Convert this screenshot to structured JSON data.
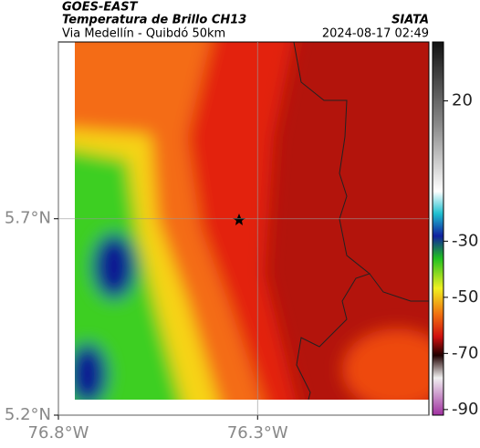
{
  "chart_data": {
    "type": "map",
    "title": "GOES-EAST",
    "subtitle": "Temperatura de Brillo CH13",
    "region": "Via Medellín - Quibdó 50km",
    "source": "SIATA",
    "timestamp": "2024-08-17 02:49",
    "xlim": [
      -76.8,
      -75.87
    ],
    "ylim": [
      5.2,
      6.15
    ],
    "xticks": [
      {
        "value": -76.8,
        "label": "76.8°W"
      },
      {
        "value": -76.3,
        "label": "76.3°W"
      }
    ],
    "yticks": [
      {
        "value": 5.2,
        "label": "5.2°N"
      },
      {
        "value": 5.7,
        "label": "5.7°N"
      }
    ],
    "grid": true,
    "colorbar": {
      "lim": [
        -92,
        41
      ],
      "ticks": [
        20,
        -30,
        -50,
        -70,
        -90
      ]
    }
  }
}
